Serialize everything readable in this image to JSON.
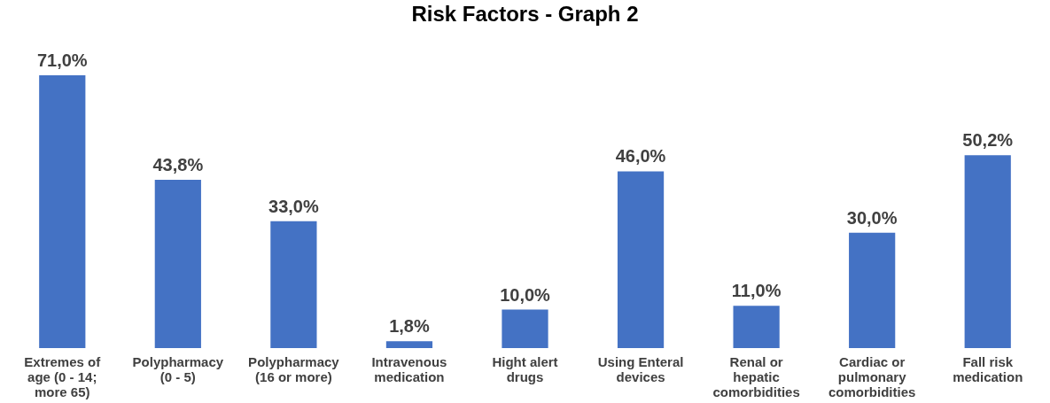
{
  "chart_data": {
    "type": "bar",
    "title": "Risk Factors - Graph 2",
    "categories": [
      "Extremes of age (0 - 14; more 65)",
      "Polypharmacy (0 - 5)",
      "Polypharmacy (16 or more)",
      "Intravenous medication",
      "Hight alert drugs",
      "Using Enteral devices",
      "Renal or hepatic comorbidities",
      "Cardiac or pulmonary comorbidities",
      "Fall risk medication"
    ],
    "values": [
      71.0,
      43.8,
      33.0,
      1.8,
      10.0,
      46.0,
      11.0,
      30.0,
      50.2
    ],
    "value_labels": [
      "71,0%",
      "43,8%",
      "33,0%",
      "1,8%",
      "10,0%",
      "46,0%",
      "11,0%",
      "30,0%",
      "50,2%"
    ],
    "color": "#4472c4"
  }
}
